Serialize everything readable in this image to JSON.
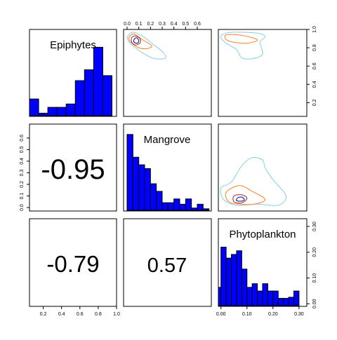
{
  "figure": {
    "panel_labels": [
      "Epiphytes",
      "Mangrove",
      "Phytoplankton"
    ],
    "correlations": {
      "epiphytes_mangrove": "-0.95",
      "epiphytes_phytoplankton": "-0.79",
      "mangrove_phytoplankton": "0.57"
    },
    "ticks": {
      "epiphytes": [
        "0.2",
        "0.4",
        "0.6",
        "0.8",
        "1.0"
      ],
      "mangrove": [
        "0.0",
        "0.1",
        "0.2",
        "0.3",
        "0.4",
        "0.5",
        "0.6"
      ],
      "phytoplankton": [
        "0.00",
        "0.10",
        "0.20",
        "0.30"
      ]
    },
    "colors": {
      "bar": "#0000ff",
      "contour_outer": "#87ceeb",
      "contour_mid": "#ff7f24",
      "contour_inner": "#b22222",
      "contour_core": "#00008b"
    }
  },
  "chart_data": [
    {
      "type": "histogram",
      "variable": "Epiphytes",
      "title": "Epiphytes",
      "bin_edges": [
        0.05,
        0.15,
        0.25,
        0.35,
        0.45,
        0.55,
        0.65,
        0.75,
        0.85,
        0.95
      ],
      "values": [
        2,
        0.3,
        1,
        1,
        1.4,
        4.2,
        5.5,
        8.2,
        4.8
      ]
    },
    {
      "type": "histogram",
      "variable": "Mangrove",
      "title": "Mangrove",
      "bin_edges": [
        0,
        0.05,
        0.1,
        0.15,
        0.2,
        0.25,
        0.3,
        0.35,
        0.4,
        0.45,
        0.5,
        0.55,
        0.6,
        0.65,
        0.7
      ],
      "values": [
        10,
        7,
        6,
        5.5,
        3.5,
        2.5,
        1,
        1,
        1.5,
        0.8,
        1.5,
        0.3,
        0.8,
        0.2
      ]
    },
    {
      "type": "histogram",
      "variable": "Phytoplankton",
      "title": "Phytoplankton",
      "bin_edges": [
        -0.01,
        0.0,
        0.02,
        0.04,
        0.06,
        0.08,
        0.1,
        0.12,
        0.14,
        0.16,
        0.18,
        0.2,
        0.22,
        0.24,
        0.26,
        0.28,
        0.3
      ],
      "values": [
        5,
        16,
        13,
        14,
        15,
        10,
        5,
        6,
        4,
        6,
        4,
        4,
        2,
        2,
        2.3,
        4
      ]
    },
    {
      "type": "contour",
      "x_variable": "Mangrove",
      "y_variable": "Epiphytes",
      "xlim": [
        -0.03,
        0.72
      ],
      "ylim": [
        0.05,
        1.0
      ],
      "levels": [
        {
          "color": "#87ceeb",
          "points": [
            [
              0.01,
              0.93
            ],
            [
              0.05,
              0.97
            ],
            [
              0.14,
              0.92
            ],
            [
              0.22,
              0.84
            ],
            [
              0.3,
              0.76
            ],
            [
              0.33,
              0.69
            ],
            [
              0.24,
              0.68
            ],
            [
              0.15,
              0.73
            ],
            [
              0.07,
              0.8
            ],
            [
              0.02,
              0.86
            ],
            [
              0.0,
              0.91
            ]
          ]
        },
        {
          "color": "#ff7f24",
          "points": [
            [
              0.02,
              0.92
            ],
            [
              0.06,
              0.95
            ],
            [
              0.13,
              0.89
            ],
            [
              0.21,
              0.82
            ],
            [
              0.17,
              0.79
            ],
            [
              0.1,
              0.8
            ],
            [
              0.05,
              0.84
            ],
            [
              0.02,
              0.88
            ]
          ]
        },
        {
          "color": "#b22222",
          "points": [
            [
              0.04,
              0.91
            ],
            [
              0.07,
              0.93
            ],
            [
              0.11,
              0.9
            ],
            [
              0.11,
              0.85
            ],
            [
              0.07,
              0.83
            ],
            [
              0.04,
              0.86
            ]
          ]
        },
        {
          "color": "#00008b",
          "points": [
            [
              0.06,
              0.89
            ],
            [
              0.08,
              0.91
            ],
            [
              0.1,
              0.88
            ],
            [
              0.09,
              0.85
            ],
            [
              0.06,
              0.86
            ]
          ]
        }
      ]
    },
    {
      "type": "contour",
      "x_variable": "Phytoplankton",
      "y_variable": "Epiphytes",
      "xlim": [
        -0.01,
        0.33
      ],
      "ylim": [
        0.05,
        1.0
      ],
      "levels": [
        {
          "color": "#87ceeb",
          "points": [
            [
              0.01,
              0.95
            ],
            [
              0.05,
              0.97
            ],
            [
              0.14,
              0.96
            ],
            [
              0.17,
              0.92
            ],
            [
              0.15,
              0.86
            ],
            [
              0.16,
              0.73
            ],
            [
              0.12,
              0.68
            ],
            [
              0.08,
              0.69
            ],
            [
              0.06,
              0.78
            ],
            [
              0.02,
              0.85
            ],
            [
              0.0,
              0.91
            ]
          ]
        },
        {
          "color": "#ff7f24",
          "points": [
            [
              0.02,
              0.94
            ],
            [
              0.07,
              0.94
            ],
            [
              0.12,
              0.91
            ],
            [
              0.14,
              0.88
            ],
            [
              0.1,
              0.85
            ],
            [
              0.05,
              0.86
            ],
            [
              0.02,
              0.89
            ]
          ]
        }
      ]
    },
    {
      "type": "contour",
      "x_variable": "Phytoplankton",
      "y_variable": "Mangrove",
      "xlim": [
        -0.01,
        0.33
      ],
      "ylim": [
        -0.03,
        0.72
      ],
      "levels": [
        {
          "color": "#87ceeb",
          "points": [
            [
              0.01,
              0.07
            ],
            [
              0.0,
              0.17
            ],
            [
              0.04,
              0.22
            ],
            [
              0.08,
              0.36
            ],
            [
              0.12,
              0.43
            ],
            [
              0.16,
              0.41
            ],
            [
              0.17,
              0.34
            ],
            [
              0.2,
              0.24
            ],
            [
              0.25,
              0.1
            ],
            [
              0.22,
              0.02
            ],
            [
              0.14,
              0.03
            ],
            [
              0.06,
              0.02
            ]
          ]
        },
        {
          "color": "#ff7f24",
          "points": [
            [
              0.03,
              0.05
            ],
            [
              0.02,
              0.13
            ],
            [
              0.07,
              0.19
            ],
            [
              0.12,
              0.14
            ],
            [
              0.17,
              0.07
            ],
            [
              0.13,
              0.03
            ],
            [
              0.07,
              0.03
            ]
          ]
        },
        {
          "color": "#b22222",
          "points": [
            [
              0.05,
              0.05
            ],
            [
              0.05,
              0.1
            ],
            [
              0.08,
              0.11
            ],
            [
              0.1,
              0.08
            ],
            [
              0.08,
              0.04
            ]
          ]
        },
        {
          "color": "#00008b",
          "points": [
            [
              0.06,
              0.06
            ],
            [
              0.065,
              0.085
            ],
            [
              0.08,
              0.09
            ],
            [
              0.09,
              0.07
            ],
            [
              0.08,
              0.055
            ]
          ]
        }
      ]
    }
  ]
}
